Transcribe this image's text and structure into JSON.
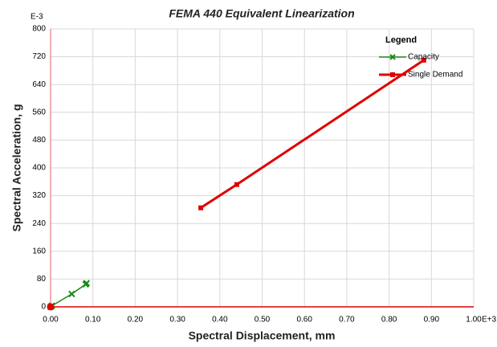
{
  "chart_data": {
    "type": "line",
    "title": "FEMA 440 Equivalent Linearization",
    "x_label": "Spectral Displacement, mm",
    "y_label": "Spectral Acceleration, g",
    "x_multiplier": "E+3",
    "y_multiplier": "E-3",
    "legend_title": "Legend",
    "legend": "upper right",
    "grid": true,
    "xlim": [
      0,
      1
    ],
    "ylim": [
      0,
      800
    ],
    "xticks": [
      {
        "value": 0,
        "label": "0.00"
      },
      {
        "value": 0.1,
        "label": "0.10"
      },
      {
        "value": 0.2,
        "label": "0.20"
      },
      {
        "value": 0.3,
        "label": "0.30"
      },
      {
        "value": 0.4,
        "label": "0.40"
      },
      {
        "value": 0.5,
        "label": "0.50"
      },
      {
        "value": 0.6,
        "label": "0.60"
      },
      {
        "value": 0.7,
        "label": "0.70"
      },
      {
        "value": 0.8,
        "label": "0.80"
      },
      {
        "value": 0.9,
        "label": "0.90"
      },
      {
        "value": 1,
        "label": "1.00"
      }
    ],
    "yticks": [
      0,
      80,
      160,
      240,
      320,
      400,
      480,
      560,
      640,
      720,
      800
    ],
    "series": [
      {
        "name": "Capacity",
        "color": "#1a8a1a",
        "marker": "x",
        "x": [
          0,
          0.003,
          0.05,
          0.083,
          0.085
        ],
        "values": [
          0,
          3,
          37,
          65,
          68
        ]
      },
      {
        "name": "Single Demand",
        "color": "#e00000",
        "marker": "square",
        "x": [
          0.355,
          0.44,
          0.882
        ],
        "values": [
          285,
          352,
          710
        ]
      },
      {
        "color": "#e00000",
        "marker": "circle",
        "x": [
          0
        ],
        "values": [
          0
        ]
      }
    ]
  }
}
